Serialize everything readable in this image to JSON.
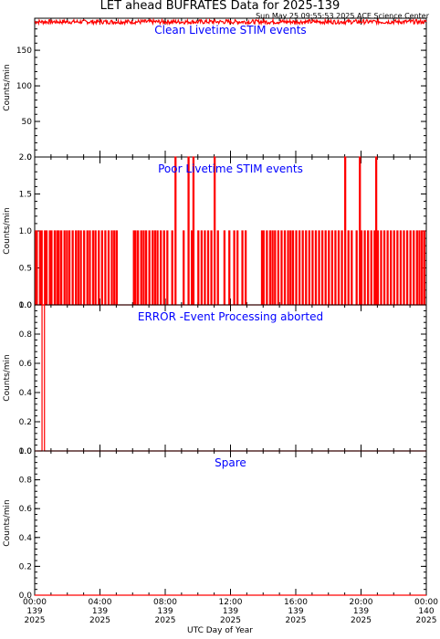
{
  "title": "LET ahead BUFRATES Data for 2025-139",
  "timestamp": "Sun May 25 09:55:53 2025 ACE Science Center",
  "x_axis_label": "UTC Day of Year",
  "colors": {
    "data": "#ff0000",
    "panel_title": "#0000ff",
    "axes": "#000000"
  },
  "chart_data": [
    {
      "type": "line",
      "title": "Clean Livetime STIM events",
      "ylabel": "Counts/min",
      "ylim": [
        0,
        195
      ],
      "yticks": [
        "0",
        "50",
        "100",
        "150"
      ],
      "xlim": [
        0,
        24
      ],
      "x_unit": "hours UTC, day 139",
      "series": [
        {
          "points": [
            [
              0,
              190
            ],
            [
              24,
              190
            ]
          ],
          "noise": [
            187,
            193
          ]
        }
      ]
    },
    {
      "type": "line",
      "title": "Poor Livetime STIM events",
      "ylabel": "Counts/min",
      "ylim": [
        0,
        2
      ],
      "yticks": [
        "0.0",
        "0.5",
        "1.0",
        "1.5",
        "2.0"
      ],
      "xlim": [
        0,
        24
      ],
      "x_unit": "hours UTC, day 139",
      "series": [
        {
          "ones": [
            0.05,
            0.1,
            0.3,
            0.4,
            0.6,
            0.7,
            0.9,
            1.0,
            1.2,
            1.35,
            1.45,
            1.6,
            1.8,
            1.95,
            2.1,
            2.3,
            2.5,
            2.65,
            2.8,
            3.0,
            3.2,
            3.35,
            3.55,
            3.7,
            3.9,
            4.1,
            4.3,
            4.5,
            4.7,
            4.85,
            5.0,
            6.05,
            6.15,
            6.3,
            6.5,
            6.65,
            6.8,
            7.0,
            7.2,
            7.35,
            7.5,
            7.7,
            7.9,
            8.1,
            8.4,
            9.1,
            9.4,
            9.6,
            10.0,
            10.2,
            10.4,
            10.6,
            10.8,
            11.2,
            11.6,
            11.9,
            12.2,
            12.4,
            12.7,
            12.9,
            13.9,
            14.0,
            14.2,
            14.4,
            14.55,
            14.7,
            14.9,
            15.1,
            15.3,
            15.5,
            15.65,
            15.8,
            16.0,
            16.2,
            16.4,
            16.6,
            16.8,
            17.0,
            17.2,
            17.4,
            17.6,
            17.8,
            18.0,
            18.2,
            18.4,
            18.6,
            18.8,
            19.2,
            19.4,
            19.7,
            20.0,
            20.2,
            20.4,
            20.6,
            20.8,
            21.0,
            21.2,
            21.4,
            21.6,
            21.8,
            22.0,
            22.2,
            22.4,
            22.6,
            22.8,
            23.0,
            23.2,
            23.4,
            23.55,
            23.7,
            23.85
          ],
          "twos": [
            8.6,
            9.4,
            9.7,
            11.0,
            19.0,
            19.9,
            20.9
          ]
        }
      ]
    },
    {
      "type": "line",
      "title": "ERROR -Event Processing aborted",
      "ylabel": "Counts/min",
      "ylim": [
        0,
        1
      ],
      "yticks": [
        "0.0",
        "0.2",
        "0.4",
        "0.6",
        "0.8",
        "1.0"
      ],
      "xlim": [
        0,
        24
      ],
      "x_unit": "hours UTC, day 139",
      "series": [
        {
          "points": [
            [
              0,
              0
            ],
            [
              0.45,
              0
            ],
            [
              0.45,
              1
            ],
            [
              0.6,
              1
            ],
            [
              0.6,
              0
            ],
            [
              24,
              0
            ]
          ]
        }
      ]
    },
    {
      "type": "line",
      "title": "Spare",
      "ylabel": "Counts/min",
      "ylim": [
        0,
        1
      ],
      "yticks": [
        "0.0",
        "0.2",
        "0.4",
        "0.6",
        "0.8",
        "1.0"
      ],
      "xlim": [
        0,
        24
      ],
      "x_unit": "hours UTC, day 139",
      "series": [
        {
          "points": [
            [
              0,
              0
            ],
            [
              24,
              0
            ]
          ]
        }
      ]
    }
  ],
  "x_ticks": [
    {
      "x": 0,
      "time": "00:00",
      "doy": "139",
      "year": "2025"
    },
    {
      "x": 4,
      "time": "04:00",
      "doy": "139",
      "year": "2025"
    },
    {
      "x": 8,
      "time": "08:00",
      "doy": "139",
      "year": "2025"
    },
    {
      "x": 12,
      "time": "12:00",
      "doy": "139",
      "year": "2025"
    },
    {
      "x": 16,
      "time": "16:00",
      "doy": "139",
      "year": "2025"
    },
    {
      "x": 20,
      "time": "20:00",
      "doy": "139",
      "year": "2025"
    },
    {
      "x": 24,
      "time": "00:00",
      "doy": "140",
      "year": "2025"
    }
  ]
}
